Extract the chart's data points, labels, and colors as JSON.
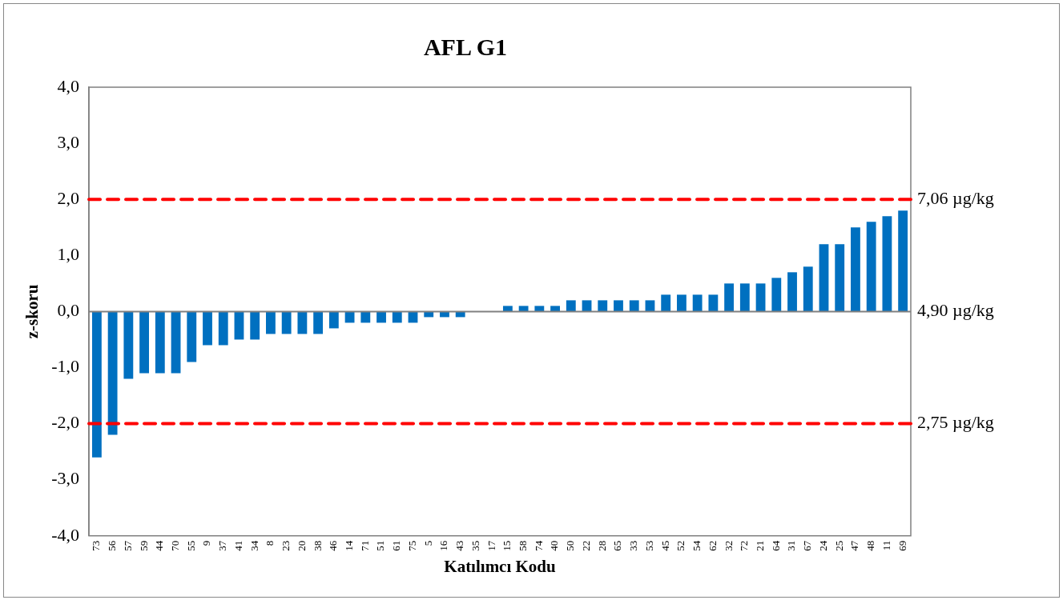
{
  "chart_data": {
    "type": "bar",
    "title": "AFL G1",
    "xlabel": "Katılımcı Kodu",
    "ylabel": "z-skoru",
    "categories": [
      "73",
      "56",
      "57",
      "59",
      "44",
      "70",
      "55",
      "9",
      "37",
      "41",
      "34",
      "8",
      "23",
      "20",
      "38",
      "46",
      "14",
      "71",
      "51",
      "61",
      "75",
      "5",
      "16",
      "43",
      "35",
      "17",
      "15",
      "58",
      "74",
      "40",
      "50",
      "22",
      "28",
      "65",
      "33",
      "53",
      "45",
      "52",
      "54",
      "62",
      "32",
      "72",
      "21",
      "64",
      "31",
      "67",
      "24",
      "25",
      "47",
      "48",
      "11",
      "69"
    ],
    "values": [
      -2.6,
      -2.2,
      -1.2,
      -1.1,
      -1.1,
      -1.1,
      -0.9,
      -0.6,
      -0.6,
      -0.5,
      -0.5,
      -0.4,
      -0.4,
      -0.4,
      -0.4,
      -0.3,
      -0.2,
      -0.2,
      -0.2,
      -0.2,
      -0.2,
      -0.1,
      -0.1,
      -0.1,
      0,
      0,
      0.1,
      0.1,
      0.1,
      0.1,
      0.2,
      0.2,
      0.2,
      0.2,
      0.2,
      0.2,
      0.3,
      0.3,
      0.3,
      0.3,
      0.5,
      0.5,
      0.5,
      0.6,
      0.7,
      0.8,
      1.2,
      1.2,
      1.5,
      1.6,
      1.7,
      1.8
    ],
    "color": "#0070c0",
    "ylim": [
      -4,
      4
    ],
    "yticks": [
      {
        "value": -4,
        "label": "-4,0"
      },
      {
        "value": -3,
        "label": "-3,0"
      },
      {
        "value": -2,
        "label": "-2,0"
      },
      {
        "value": -1,
        "label": "-1,0"
      },
      {
        "value": 0,
        "label": "0,0"
      },
      {
        "value": 1,
        "label": "1,0"
      },
      {
        "value": 2,
        "label": "2,0"
      },
      {
        "value": 3,
        "label": "3,0"
      },
      {
        "value": 4,
        "label": "4,0"
      }
    ],
    "ref_lines": [
      {
        "axis": "y",
        "value": 2,
        "label": "7,06 µg/kg",
        "color": "#ff0000",
        "line_style": "dashed"
      },
      {
        "axis": "y",
        "value": 0,
        "label": "4,90 µg/kg",
        "color": "#808080",
        "line_style": "solid"
      },
      {
        "axis": "y",
        "value": -2,
        "label": "2,75 µg/kg",
        "color": "#ff0000",
        "line_style": "dashed"
      }
    ],
    "grid": false,
    "legend": false
  }
}
